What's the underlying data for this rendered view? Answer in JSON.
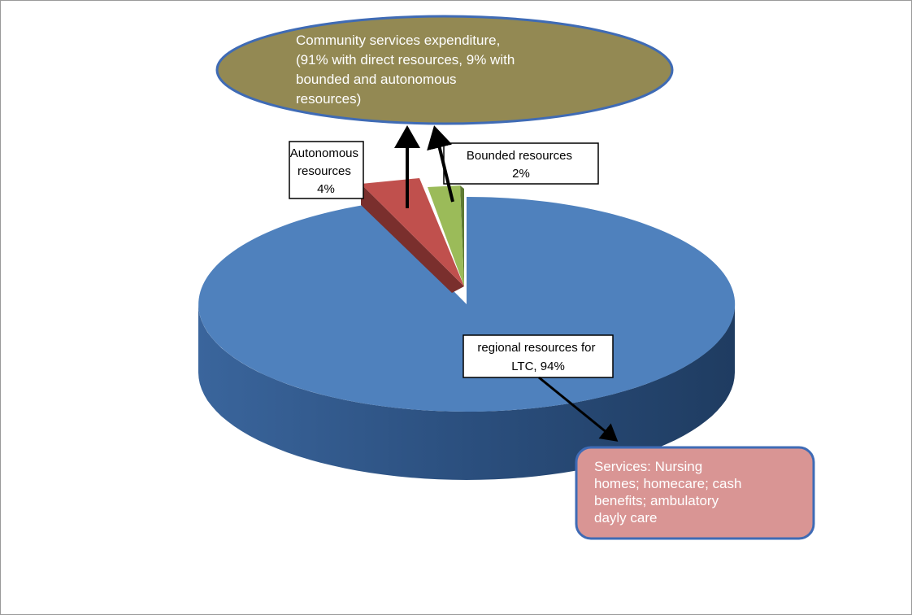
{
  "chart_data": {
    "type": "pie",
    "title": "",
    "slices": [
      {
        "name": "regional resources for LTC",
        "value": 94,
        "label": "regional resources for LTC, 94%",
        "color": "#4F81BD"
      },
      {
        "name": "Autonomous resources",
        "value": 4,
        "label": "Autonomous resources 4%",
        "color": "#C0504D"
      },
      {
        "name": "Bounded resources",
        "value": 2,
        "label": "Bounded resources 2%",
        "color": "#9BBB59"
      }
    ],
    "legend": "none"
  },
  "labels": {
    "autonomous": [
      "Autonomous",
      "resources",
      "4%"
    ],
    "bounded": [
      "Bounded resources",
      "2%"
    ],
    "regional": [
      "regional resources for",
      "LTC, 94%"
    ]
  },
  "callouts": {
    "community": {
      "lines": [
        "Community services expenditure,",
        "(91% with direct resources, 9% with",
        "bounded and autonomous",
        "resources)"
      ],
      "color": "#938953"
    },
    "services": {
      "lines": [
        "Services: Nursing",
        "homes;  homecare; cash",
        "benefits;  ambulatory",
        "dayly care"
      ],
      "color": "#D99594"
    }
  }
}
